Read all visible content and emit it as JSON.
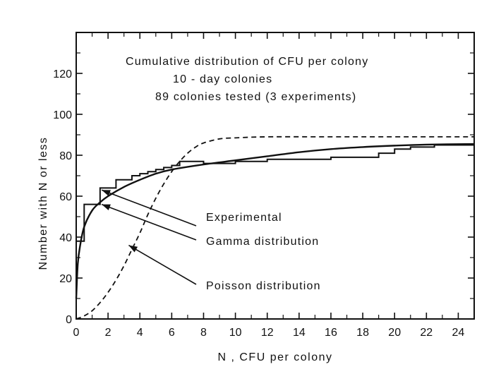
{
  "chart_data": {
    "type": "line",
    "title_lines": [
      "Cumulative distribution of CFU per colony",
      "10 - day colonies",
      "89 colonies tested (3 experiments)"
    ],
    "xlabel": "N , CFU per colony",
    "ylabel": "Number with N or less",
    "xlim": [
      0,
      25
    ],
    "ylim": [
      0,
      140
    ],
    "x_ticks": [
      0,
      2,
      4,
      6,
      8,
      10,
      12,
      14,
      16,
      18,
      20,
      22,
      24
    ],
    "y_ticks": [
      0,
      20,
      40,
      60,
      80,
      100,
      120
    ],
    "grid": false,
    "series": [
      {
        "name": "Experimental",
        "style": "step",
        "x": [
          0,
          0.5,
          1.5,
          2.5,
          3.5,
          4,
          4.5,
          5,
          5.5,
          6,
          6.5,
          8,
          10,
          12,
          16,
          19,
          20,
          21,
          22.5,
          25
        ],
        "y": [
          38,
          56,
          64,
          68,
          70,
          71,
          72,
          73,
          74,
          75,
          77,
          76,
          77,
          78,
          79,
          81,
          83,
          84,
          85,
          85
        ]
      },
      {
        "name": "Gamma distribution",
        "style": "solid",
        "x": [
          0,
          0.1,
          0.25,
          0.5,
          1,
          1.5,
          2,
          3,
          4,
          5,
          6,
          8,
          10,
          12,
          14,
          16,
          18,
          20,
          22,
          25
        ],
        "y": [
          10,
          27,
          36,
          45,
          53,
          57,
          60,
          64.5,
          68,
          71,
          73,
          75.5,
          77.5,
          79.5,
          81.5,
          83,
          84,
          84.7,
          85.2,
          85.5
        ]
      },
      {
        "name": "Poisson distribution",
        "style": "dashed",
        "x": [
          0,
          0.5,
          1,
          1.5,
          2,
          2.5,
          3,
          3.5,
          4,
          4.5,
          5,
          5.5,
          6,
          6.5,
          7,
          7.5,
          8,
          9,
          10,
          12,
          16,
          20,
          25
        ],
        "y": [
          0,
          1.5,
          4,
          8,
          13,
          19,
          26,
          34,
          42,
          51,
          59,
          66,
          72,
          77,
          81,
          84,
          86,
          88,
          88.5,
          89,
          89,
          89,
          89
        ]
      }
    ],
    "annotations": [
      {
        "text": "Experimental",
        "points_to": {
          "x": 1.6,
          "y": 63
        }
      },
      {
        "text": "Gamma distribution",
        "points_to": {
          "x": 1.6,
          "y": 56
        }
      },
      {
        "text": "Poisson distribution",
        "points_to": {
          "x": 3.3,
          "y": 36
        }
      }
    ]
  }
}
